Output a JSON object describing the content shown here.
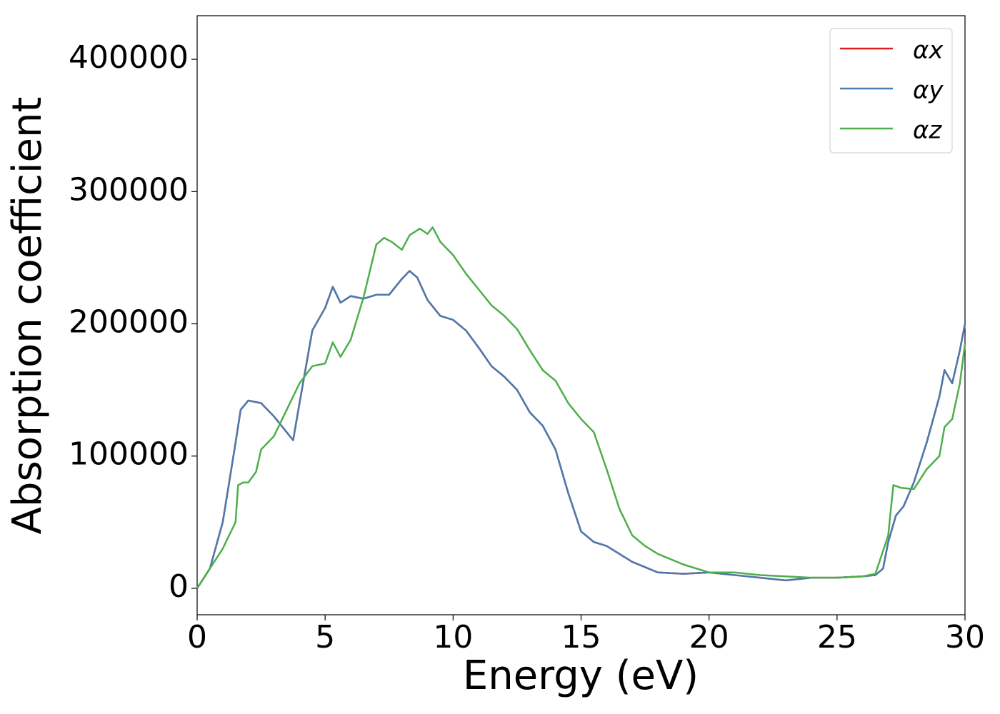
{
  "chart_data": {
    "type": "line",
    "xlabel": "Energy (eV)",
    "ylabel": "Absorption coefficient",
    "xlim": [
      0,
      30
    ],
    "ylim": [
      -20000,
      433000
    ],
    "xticks": [
      0,
      5,
      10,
      15,
      20,
      25,
      30
    ],
    "yticks": [
      0,
      100000,
      200000,
      300000,
      400000
    ],
    "grid": false,
    "legend": "upper right",
    "series": [
      {
        "name": "αx",
        "color": "#e41a1c",
        "x": [
          0,
          0.5,
          1,
          1.5,
          1.7,
          2,
          2.5,
          3,
          3.5,
          3.75,
          4,
          4.5,
          5,
          5.3,
          5.6,
          6,
          6.5,
          7,
          7.5,
          8,
          8.3,
          8.6,
          9,
          9.5,
          10,
          10.5,
          11,
          11.5,
          12,
          12.5,
          13,
          13.5,
          14,
          14.5,
          15,
          15.5,
          16,
          16.5,
          17,
          17.5,
          18,
          19,
          20,
          21,
          22,
          23,
          24,
          25,
          26,
          26.5,
          26.8,
          27,
          27.3,
          27.6,
          28,
          28.5,
          29,
          29.2,
          29.5,
          29.8,
          30
        ],
        "values": [
          0,
          15000,
          50000,
          110000,
          135000,
          142000,
          140000,
          130000,
          118000,
          112000,
          140000,
          195000,
          212000,
          228000,
          216000,
          221000,
          219000,
          222000,
          222000,
          234000,
          240000,
          235000,
          218000,
          206000,
          203000,
          195000,
          182000,
          168000,
          160000,
          150000,
          133000,
          123000,
          105000,
          72000,
          43000,
          35000,
          32000,
          26000,
          20000,
          16000,
          12000,
          11000,
          12000,
          10000,
          8000,
          6000,
          8000,
          8000,
          9000,
          10000,
          15000,
          35000,
          55000,
          62000,
          80000,
          110000,
          145000,
          165000,
          155000,
          180000,
          200000
        ]
      },
      {
        "name": "αy",
        "color": "#4a7bb0",
        "x": [
          0,
          0.5,
          1,
          1.5,
          1.7,
          2,
          2.5,
          3,
          3.5,
          3.75,
          4,
          4.5,
          5,
          5.3,
          5.6,
          6,
          6.5,
          7,
          7.5,
          8,
          8.3,
          8.6,
          9,
          9.5,
          10,
          10.5,
          11,
          11.5,
          12,
          12.5,
          13,
          13.5,
          14,
          14.5,
          15,
          15.5,
          16,
          16.5,
          17,
          17.5,
          18,
          19,
          20,
          21,
          22,
          23,
          24,
          25,
          26,
          26.5,
          26.8,
          27,
          27.3,
          27.6,
          28,
          28.5,
          29,
          29.2,
          29.5,
          29.8,
          30
        ],
        "values": [
          0,
          15000,
          50000,
          110000,
          135000,
          142000,
          140000,
          130000,
          118000,
          112000,
          140000,
          195000,
          212000,
          228000,
          216000,
          221000,
          219000,
          222000,
          222000,
          234000,
          240000,
          235000,
          218000,
          206000,
          203000,
          195000,
          182000,
          168000,
          160000,
          150000,
          133000,
          123000,
          105000,
          72000,
          43000,
          35000,
          32000,
          26000,
          20000,
          16000,
          12000,
          11000,
          12000,
          10000,
          8000,
          6000,
          8000,
          8000,
          9000,
          10000,
          15000,
          35000,
          55000,
          62000,
          80000,
          110000,
          145000,
          165000,
          155000,
          180000,
          200000
        ]
      },
      {
        "name": "αz",
        "color": "#4daf4a",
        "x": [
          0,
          0.5,
          1,
          1.5,
          1.6,
          1.8,
          2,
          2.3,
          2.5,
          3,
          3.5,
          4,
          4.5,
          5,
          5.3,
          5.6,
          6,
          6.5,
          7,
          7.3,
          7.6,
          8,
          8.3,
          8.7,
          9,
          9.2,
          9.5,
          10,
          10.5,
          11,
          11.5,
          12,
          12.5,
          13,
          13.5,
          14,
          14.5,
          15,
          15.5,
          16,
          16.5,
          17,
          17.5,
          18,
          19,
          20,
          21,
          22,
          23,
          24,
          25,
          26,
          26.5,
          27,
          27.2,
          27.5,
          28,
          28.5,
          29,
          29.2,
          29.5,
          29.8,
          30
        ],
        "values": [
          0,
          15000,
          30000,
          50000,
          78000,
          80000,
          80000,
          88000,
          105000,
          115000,
          135000,
          155000,
          168000,
          170000,
          186000,
          175000,
          188000,
          220000,
          260000,
          265000,
          262000,
          256000,
          267000,
          272000,
          268000,
          273000,
          262000,
          252000,
          238000,
          226000,
          214000,
          206000,
          196000,
          180000,
          165000,
          157000,
          140000,
          128000,
          118000,
          90000,
          60000,
          40000,
          32000,
          26000,
          18000,
          12000,
          12000,
          10000,
          9000,
          8000,
          8000,
          9000,
          11000,
          40000,
          78000,
          76000,
          75000,
          90000,
          100000,
          122000,
          128000,
          155000,
          185000
        ]
      }
    ]
  }
}
